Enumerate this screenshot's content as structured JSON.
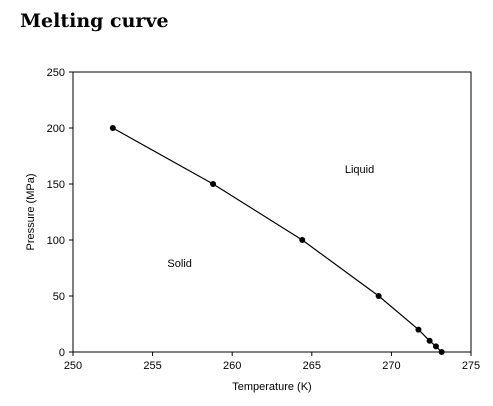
{
  "chart_data": {
    "type": "scatter",
    "title": "Melting curve",
    "xlabel": "Temperature (K)",
    "ylabel": "Pressure (MPa)",
    "xlim": [
      250,
      275
    ],
    "ylim": [
      0,
      250
    ],
    "x_ticks": [
      250,
      255,
      260,
      265,
      270,
      275
    ],
    "y_ticks": [
      0,
      50,
      100,
      150,
      200,
      250
    ],
    "grid": false,
    "series": [
      {
        "x": [
          273.16,
          272.8,
          272.4,
          271.7,
          269.2,
          264.4,
          258.8,
          252.5
        ],
        "y": [
          0,
          5,
          10,
          20,
          50,
          100,
          150,
          200
        ],
        "marker": "circle",
        "line": true,
        "color": "#000000"
      }
    ],
    "annotations": [
      {
        "text": "Liquid",
        "x": 268.0,
        "y": 160
      },
      {
        "text": "Solid",
        "x": 256.7,
        "y": 76
      }
    ]
  }
}
